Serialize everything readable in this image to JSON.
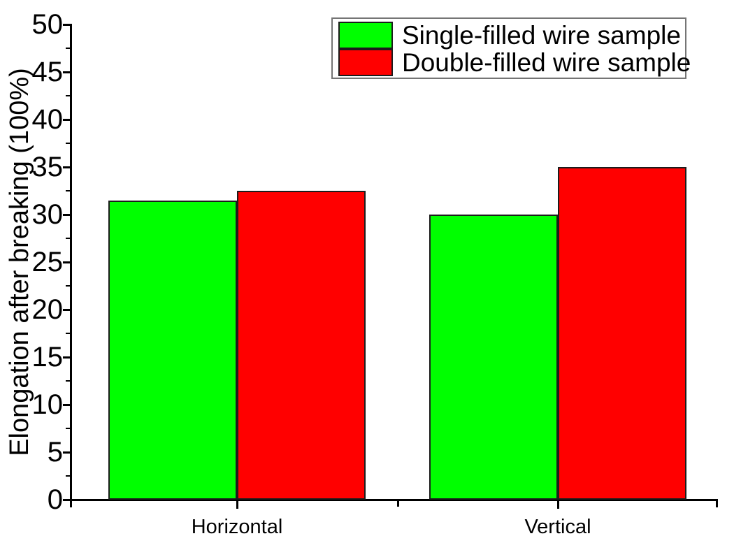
{
  "chart_data": {
    "type": "bar",
    "title": "",
    "categories": [
      "Horizontal",
      "Vertical"
    ],
    "series": [
      {
        "name": "Single-filled wire sample",
        "color": "#00ff00",
        "values": [
          31.5,
          30
        ]
      },
      {
        "name": "Double-filled wire sample",
        "color": "#ff0000",
        "values": [
          32.5,
          35
        ]
      }
    ],
    "xlabel": "",
    "ylabel": "Elongation after breaking (100%)",
    "ylim": [
      0,
      50
    ],
    "y_tick_step": 5,
    "y_minor_tick_step": 2.5,
    "y_tick_labels": [
      "0",
      "5",
      "10",
      "15",
      "20",
      "25",
      "30",
      "35",
      "40",
      "45",
      "50"
    ],
    "grid": false,
    "legend_position": "top-right",
    "bar_edge_color": "#1c1c1c",
    "axis_color": "#000000",
    "background_color": "#ffffff"
  }
}
